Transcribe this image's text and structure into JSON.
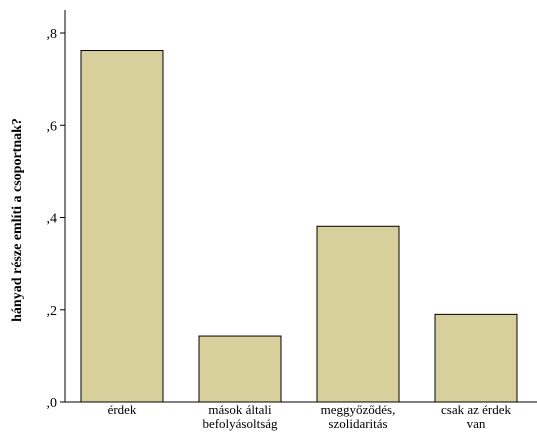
{
  "chart_data": {
    "type": "bar",
    "title": "",
    "xlabel": "",
    "ylabel": "hányad része említi a csoportnak?",
    "categories": [
      [
        "érdek"
      ],
      [
        "mások általi",
        "befolyásoltság"
      ],
      [
        "meggyőződés,",
        "szolidaritás"
      ],
      [
        "csak az érdek",
        "van"
      ]
    ],
    "values": [
      0.762,
      0.143,
      0.381,
      0.19
    ],
    "ylim": [
      0,
      0.8
    ],
    "yticks": [
      {
        "value": 0,
        "label": ",0"
      },
      {
        "value": 0.2,
        "label": ",2"
      },
      {
        "value": 0.4,
        "label": ",4"
      },
      {
        "value": 0.6,
        "label": ",6"
      },
      {
        "value": 0.8,
        "label": ",8"
      }
    ],
    "grid": false,
    "legend": "none",
    "colors": {
      "bar_fill": "#d8d09c",
      "bar_stroke": "#000000",
      "axis": "#000000",
      "background": "#ffffff"
    }
  }
}
